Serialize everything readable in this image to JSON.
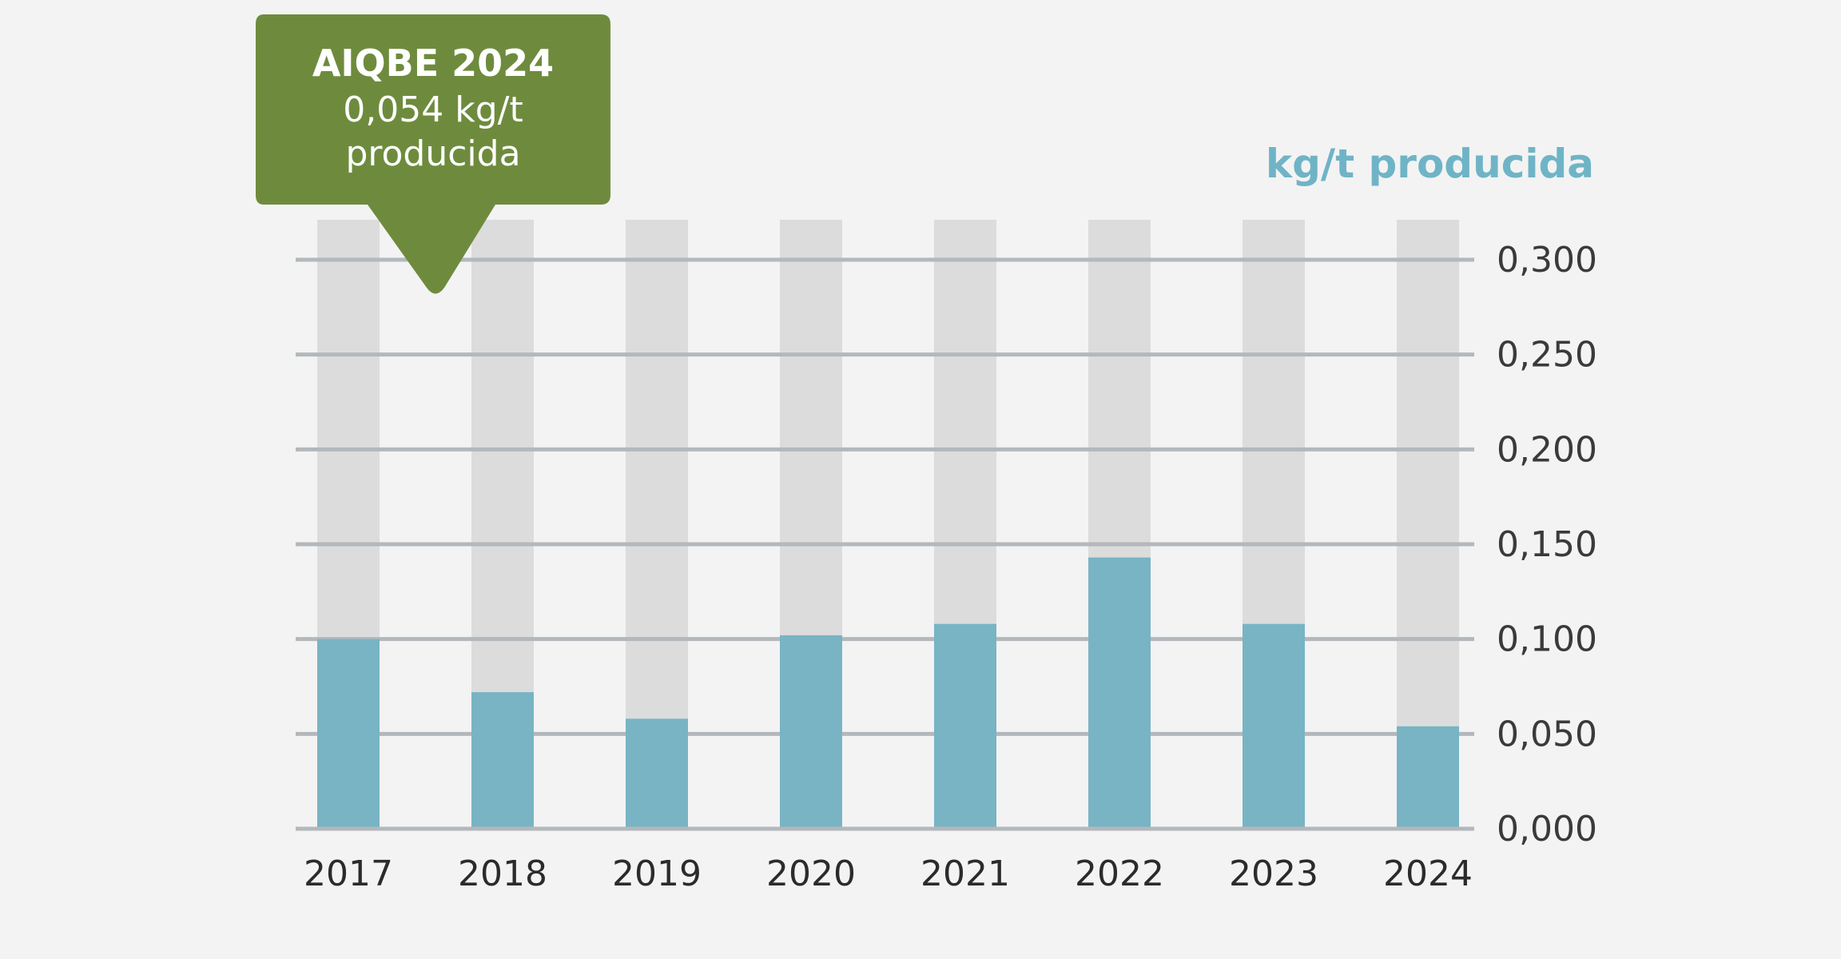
{
  "chart_data": {
    "type": "bar",
    "categories": [
      "2017",
      "2018",
      "2019",
      "2020",
      "2021",
      "2022",
      "2023",
      "2024"
    ],
    "values": [
      0.1,
      0.072,
      0.058,
      0.102,
      0.108,
      0.143,
      0.108,
      0.054
    ],
    "ylabel": "kg/t producida",
    "ylim": [
      0,
      0.3
    ],
    "yticks": [
      "0,000",
      "0,050",
      "0,100",
      "0,150",
      "0,200",
      "0,250",
      "0,300"
    ],
    "grid": true,
    "y_axis_side": "right",
    "annotation": {
      "title": "AIQBE 2024",
      "line1": "0,054 kg/t",
      "line2": "producida"
    }
  },
  "colors": {
    "bar": "#78b4c4",
    "bar_background": "#dcdcdc",
    "grid": "#b3b8bc",
    "callout": "#6e8b3d",
    "unit_label": "#6fb4c6"
  }
}
